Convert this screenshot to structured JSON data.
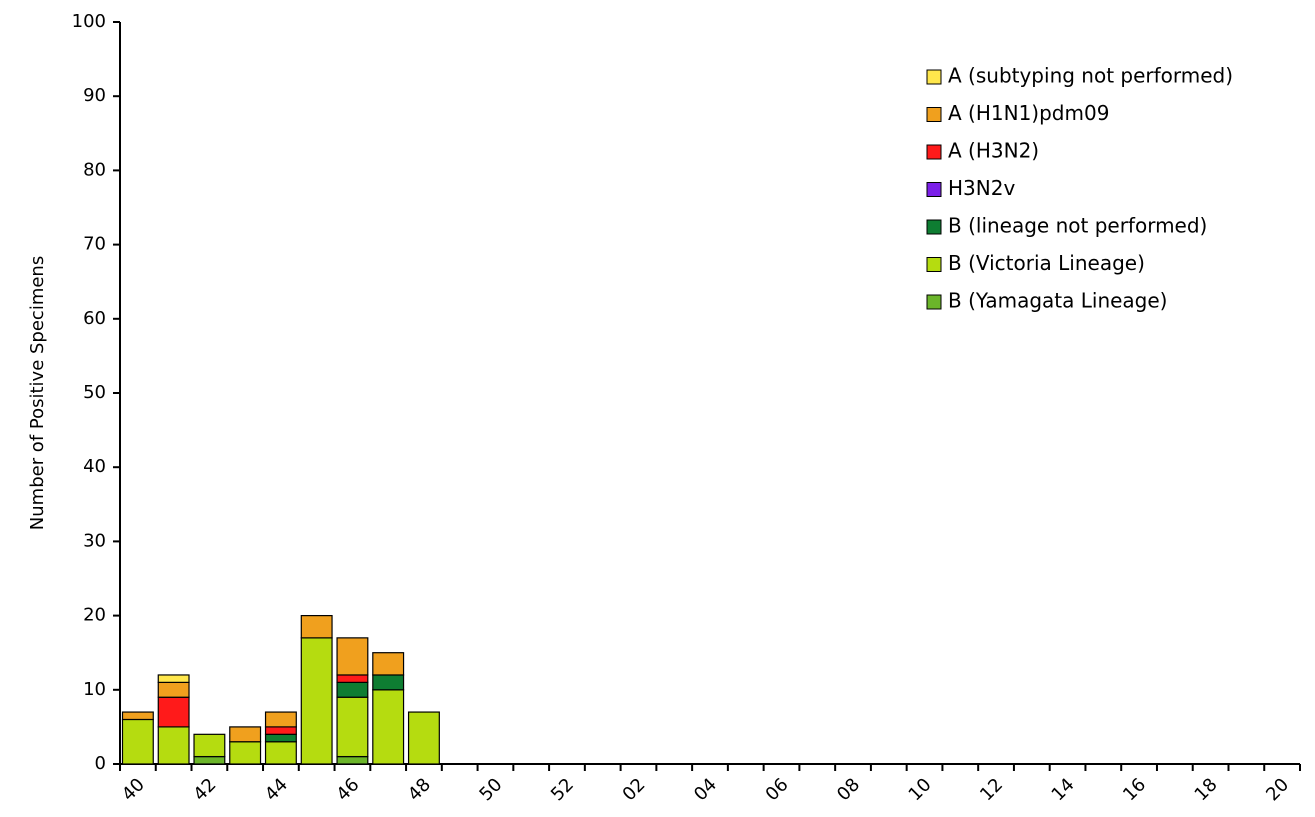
{
  "chart_data": {
    "type": "stacked_bar",
    "y_label": "Number of Positive Specimens",
    "categories": [
      "40",
      null,
      "42",
      null,
      "44",
      null,
      "46",
      null,
      "48",
      null,
      "50",
      null,
      "52",
      null,
      "02",
      null,
      "04",
      null,
      "06",
      null,
      "08",
      null,
      "10",
      null,
      "12",
      null,
      "14",
      null,
      "16",
      null,
      "18",
      null,
      "20"
    ],
    "series": [
      {
        "name": "A (subtyping not performed)",
        "color": "#ffe74c",
        "values": [
          0,
          1,
          0,
          0,
          0,
          0,
          0,
          0,
          0,
          null,
          null,
          null,
          null,
          null,
          null,
          null,
          null,
          null,
          null,
          null,
          null,
          null,
          null,
          null,
          null,
          null,
          null,
          null,
          null,
          null,
          null,
          null,
          null
        ]
      },
      {
        "name": "A (H1N1)pdm09",
        "color": "#f0a01e",
        "values": [
          1,
          2,
          0,
          2,
          2,
          3,
          5,
          3,
          0,
          null,
          null,
          null,
          null,
          null,
          null,
          null,
          null,
          null,
          null,
          null,
          null,
          null,
          null,
          null,
          null,
          null,
          null,
          null,
          null,
          null,
          null,
          null,
          null
        ]
      },
      {
        "name": "A (H3N2)",
        "color": "#ff1a1a",
        "values": [
          0,
          4,
          0,
          0,
          1,
          0,
          1,
          0,
          0,
          null,
          null,
          null,
          null,
          null,
          null,
          null,
          null,
          null,
          null,
          null,
          null,
          null,
          null,
          null,
          null,
          null,
          null,
          null,
          null,
          null,
          null,
          null,
          null
        ]
      },
      {
        "name": "H3N2v",
        "color": "#7b1fe8",
        "values": [
          0,
          0,
          0,
          0,
          0,
          0,
          0,
          0,
          0,
          null,
          null,
          null,
          null,
          null,
          null,
          null,
          null,
          null,
          null,
          null,
          null,
          null,
          null,
          null,
          null,
          null,
          null,
          null,
          null,
          null,
          null,
          null,
          null
        ]
      },
      {
        "name": "B (lineage not performed)",
        "color": "#0e7d32",
        "values": [
          0,
          0,
          0,
          0,
          1,
          0,
          2,
          2,
          0,
          null,
          null,
          null,
          null,
          null,
          null,
          null,
          null,
          null,
          null,
          null,
          null,
          null,
          null,
          null,
          null,
          null,
          null,
          null,
          null,
          null,
          null,
          null,
          null
        ]
      },
      {
        "name": "B (Victoria Lineage)",
        "color": "#b5dc10",
        "values": [
          6,
          5,
          3,
          3,
          3,
          17,
          8,
          10,
          7,
          null,
          null,
          null,
          null,
          null,
          null,
          null,
          null,
          null,
          null,
          null,
          null,
          null,
          null,
          null,
          null,
          null,
          null,
          null,
          null,
          null,
          null,
          null,
          null
        ]
      },
      {
        "name": "B (Yamagata Lineage)",
        "color": "#6bb52a",
        "values": [
          0,
          0,
          1,
          0,
          0,
          0,
          1,
          0,
          0,
          null,
          null,
          null,
          null,
          null,
          null,
          null,
          null,
          null,
          null,
          null,
          null,
          null,
          null,
          null,
          null,
          null,
          null,
          null,
          null,
          null,
          null,
          null,
          null
        ]
      }
    ],
    "ylim": [
      0,
      100
    ],
    "yticks": [
      0,
      10,
      20,
      30,
      40,
      50,
      60,
      70,
      80,
      90,
      100
    ],
    "legend": "upper right"
  }
}
